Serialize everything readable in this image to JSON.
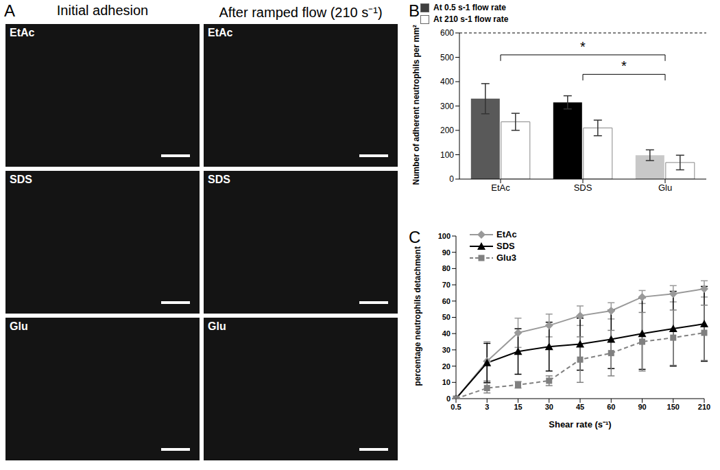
{
  "chart_data": [
    {
      "type": "image_grid",
      "panel": "A",
      "columns": [
        "Initial adhesion",
        "After ramped flow (210 s⁻¹)"
      ],
      "rows": [
        "EtAc",
        "SDS",
        "Glu"
      ]
    },
    {
      "type": "bar",
      "panel": "B",
      "categories": [
        "EtAc",
        "SDS",
        "Glu"
      ],
      "y_label": "Number of adherent neutrophils per mm²",
      "ylim": [
        0,
        600
      ],
      "yticks": [
        0,
        100,
        200,
        300,
        400,
        500,
        600
      ],
      "legend": "upper right",
      "series": [
        {
          "name": "At 0.5 s-1 flow rate",
          "color": "#404040",
          "colors": [
            "#595959",
            "#000000",
            "#c8c8c8"
          ],
          "values": [
            330,
            315,
            98
          ],
          "errors": [
            62,
            27,
            22
          ]
        },
        {
          "name": "At 210 s-1 flow rate",
          "color": "#ffffff",
          "values": [
            235,
            210,
            68
          ],
          "errors": [
            35,
            32,
            30
          ]
        }
      ],
      "annotations": [
        {
          "text": "*",
          "from": "EtAc",
          "to": "Glu",
          "y": 510
        },
        {
          "text": "*",
          "from": "SDS",
          "to": "Glu",
          "y": 430
        }
      ]
    },
    {
      "type": "line",
      "panel": "C",
      "categories": [
        "0.5",
        "3",
        "15",
        "30",
        "45",
        "60",
        "90",
        "150",
        "210"
      ],
      "x_label": "Shear rate (s⁻¹)",
      "y_label": "percentage neutrophils detachment",
      "ylim": [
        0,
        100
      ],
      "yticks": [
        0,
        10,
        20,
        30,
        40,
        50,
        60,
        70,
        80,
        90,
        100
      ],
      "legend": "upper left",
      "series": [
        {
          "name": "EtAc",
          "color": "#999999",
          "marker": "diamond",
          "line_style": "solid",
          "values": [
            0,
            23,
            40.5,
            45,
            51,
            54,
            62.5,
            64.5,
            67.5
          ],
          "errors": [
            0,
            12,
            9,
            7,
            6,
            5,
            4,
            5,
            5
          ]
        },
        {
          "name": "SDS",
          "color": "#000000",
          "marker": "triangle",
          "line_style": "solid",
          "values": [
            0,
            22,
            29,
            32,
            33.5,
            36.5,
            40,
            43,
            46
          ],
          "errors": [
            0,
            12,
            14,
            15,
            16,
            18,
            22,
            23,
            23
          ]
        },
        {
          "name": "Glu3",
          "color": "#808080",
          "marker": "square",
          "line_style": "dashed",
          "values": [
            0,
            6.5,
            8.5,
            11,
            24,
            28,
            35,
            37.5,
            40.5
          ],
          "errors": [
            0,
            3,
            2,
            3,
            14,
            14,
            18,
            17,
            17
          ]
        }
      ]
    }
  ]
}
